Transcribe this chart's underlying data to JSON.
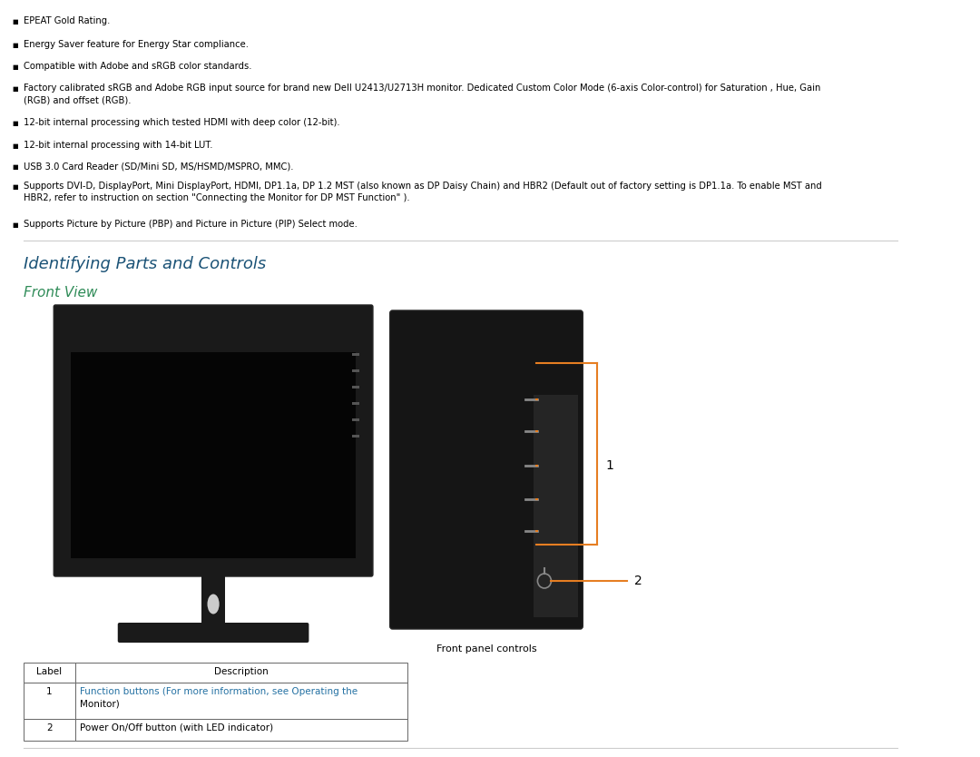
{
  "bg_color": "#ffffff",
  "bullet_color": "#000000",
  "heading1_color": "#1a5276",
  "heading2_color": "#1a7a4a",
  "link_color": "#2471a3",
  "orange_color": "#e67e22",
  "text_color": "#000000",
  "separator_color": "#cccccc",
  "bullet_items": [
    "EPEAT Gold Rating.",
    "Energy Saver feature for Energy Star compliance.",
    "Compatible with Adobe and sRGB color standards.",
    "Factory calibrated sRGB and Adobe RGB input source for brand new Dell U2413/U2713H monitor. Dedicated Custom Color Mode (6-axis Color-control) for Saturation , Hue, Gain\n    (RGB) and offset (RGB).",
    "12-bit internal processing which tested HDMI with deep color (12-bit).",
    "12-bit internal processing with 14-bit LUT.",
    "USB 3.0 Card Reader (SD/Mini SD, MS/HSMD/MSPRO, MMC).",
    "Supports DVI-D, DisplayPort, Mini DisplayPort, HDMI, DP1.1a, DP 1.2 MST (also known as DP Daisy Chain) and HBR2 (Default out of factory setting is DP1.1a. To enable MST and\n    HBR2, refer to instruction on section \"Connecting the Monitor for DP MST Function\" ).",
    "Supports Picture by Picture (PBP) and Picture in Picture (PIP) Select mode."
  ],
  "section_heading": "Identifying Parts and Controls",
  "sub_heading": "Front View",
  "caption": "Front panel controls",
  "table_headers": [
    "Label",
    "Description"
  ],
  "table_rows": [
    [
      "1",
      "Function buttons (For more information, see Operating the\nMonitor)"
    ],
    [
      "2",
      "Power On/Off button (with LED indicator)"
    ]
  ],
  "label1": "1",
  "label2": "2"
}
